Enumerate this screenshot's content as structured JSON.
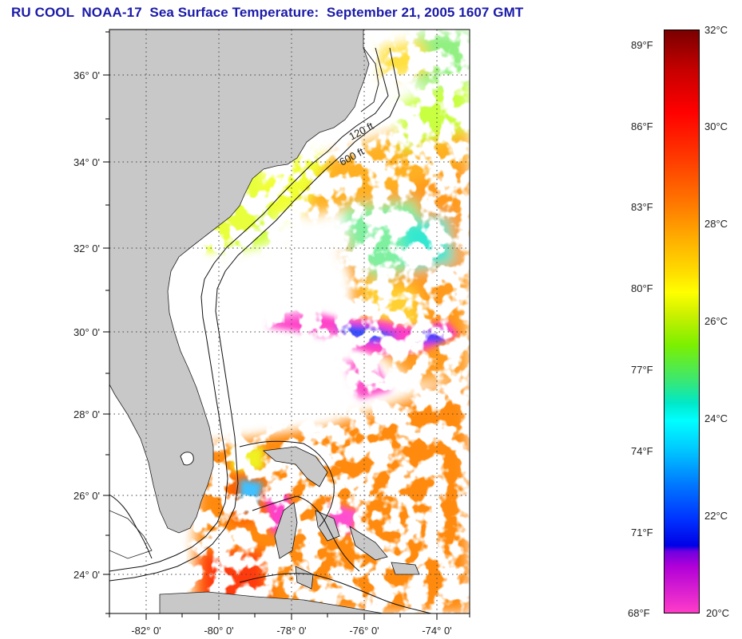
{
  "title": "RU COOL  NOAA-17  Sea Surface Temperature:  September 21, 2005 1607 GMT",
  "map": {
    "region": "US Southeast Atlantic coast and Bahamas",
    "land_color": "#c8c8c8",
    "cloud_color": "#ffffff",
    "gridlines": "dotted",
    "longitude_ticks": [
      "-82° 0'",
      "-80° 0'",
      "-78° 0'",
      "-76° 0'",
      "-74° 0'"
    ],
    "latitude_ticks": [
      "36° 0'",
      "34° 0'",
      "32° 0'",
      "30° 0'",
      "28° 0'",
      "26° 0'",
      "24° 0'"
    ],
    "isobath_labels": [
      "120 ft",
      "600 ft"
    ]
  },
  "colorbar": {
    "fahrenheit_labels": [
      "89°F",
      "86°F",
      "83°F",
      "80°F",
      "77°F",
      "74°F",
      "71°F",
      "68°F"
    ],
    "celsius_labels": [
      "32°C",
      "30°C",
      "28°C",
      "26°C",
      "24°C",
      "22°C",
      "20°C"
    ]
  }
}
